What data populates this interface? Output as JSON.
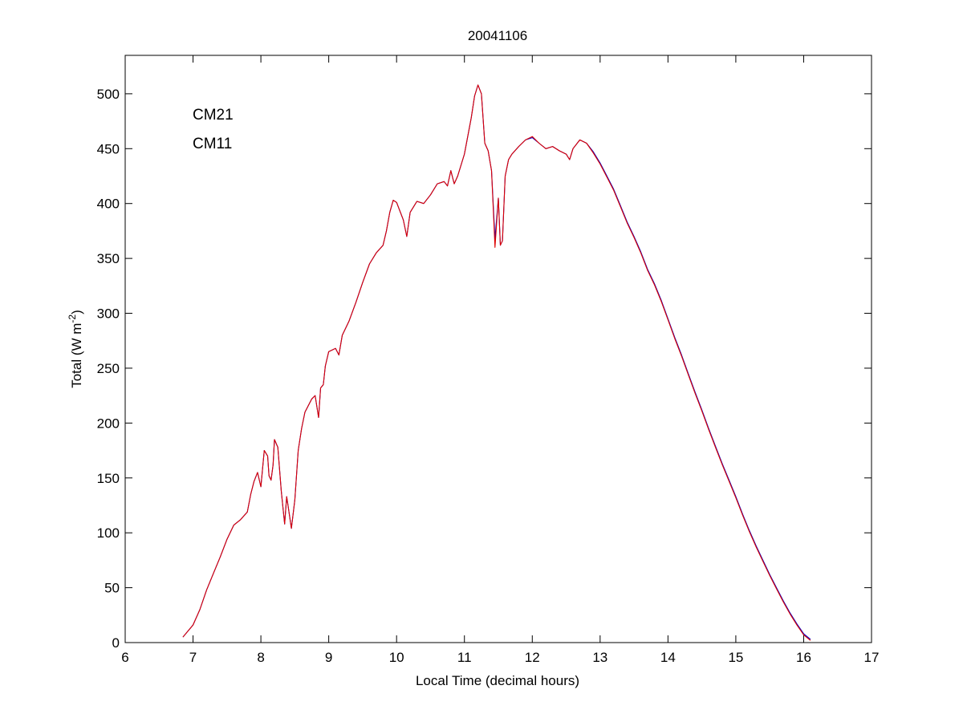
{
  "chart_data": {
    "type": "line",
    "title": "20041106",
    "xlabel": "Local Time (decimal hours)",
    "ylabel": {
      "main": "Total (W m",
      "sup": "-2",
      "close": ")"
    },
    "xlim": [
      6,
      17
    ],
    "ylim": [
      0,
      535
    ],
    "xticks": [
      6,
      7,
      8,
      9,
      10,
      11,
      12,
      13,
      14,
      15,
      16,
      17
    ],
    "yticks": [
      0,
      50,
      100,
      150,
      200,
      250,
      300,
      350,
      400,
      450,
      500
    ],
    "grid": false,
    "legend_position": "top-left",
    "series": [
      {
        "name": "CM21",
        "color": "#0000cc",
        "points": [
          [
            6.85,
            5
          ],
          [
            7.0,
            16
          ],
          [
            7.1,
            30
          ],
          [
            7.2,
            48
          ],
          [
            7.3,
            63
          ],
          [
            7.4,
            78
          ],
          [
            7.5,
            94
          ],
          [
            7.6,
            107
          ],
          [
            7.7,
            112
          ],
          [
            7.8,
            119
          ],
          [
            7.85,
            135
          ],
          [
            7.9,
            147
          ],
          [
            7.95,
            155
          ],
          [
            8.0,
            142
          ],
          [
            8.05,
            175
          ],
          [
            8.1,
            170
          ],
          [
            8.12,
            152
          ],
          [
            8.15,
            148
          ],
          [
            8.18,
            162
          ],
          [
            8.2,
            185
          ],
          [
            8.25,
            178
          ],
          [
            8.3,
            138
          ],
          [
            8.35,
            108
          ],
          [
            8.38,
            133
          ],
          [
            8.4,
            125
          ],
          [
            8.45,
            104
          ],
          [
            8.5,
            130
          ],
          [
            8.55,
            175
          ],
          [
            8.6,
            195
          ],
          [
            8.65,
            210
          ],
          [
            8.75,
            222
          ],
          [
            8.8,
            225
          ],
          [
            8.85,
            205
          ],
          [
            8.88,
            232
          ],
          [
            8.92,
            235
          ],
          [
            8.95,
            252
          ],
          [
            9.0,
            265
          ],
          [
            9.1,
            268
          ],
          [
            9.15,
            262
          ],
          [
            9.2,
            280
          ],
          [
            9.3,
            293
          ],
          [
            9.4,
            310
          ],
          [
            9.5,
            328
          ],
          [
            9.6,
            345
          ],
          [
            9.7,
            355
          ],
          [
            9.8,
            362
          ],
          [
            9.85,
            375
          ],
          [
            9.9,
            392
          ],
          [
            9.95,
            403
          ],
          [
            10.0,
            401
          ],
          [
            10.1,
            385
          ],
          [
            10.15,
            370
          ],
          [
            10.2,
            392
          ],
          [
            10.3,
            402
          ],
          [
            10.4,
            400
          ],
          [
            10.5,
            408
          ],
          [
            10.6,
            418
          ],
          [
            10.7,
            420
          ],
          [
            10.75,
            416
          ],
          [
            10.8,
            430
          ],
          [
            10.85,
            418
          ],
          [
            10.9,
            425
          ],
          [
            11.0,
            445
          ],
          [
            11.1,
            478
          ],
          [
            11.15,
            498
          ],
          [
            11.2,
            508
          ],
          [
            11.25,
            500
          ],
          [
            11.3,
            455
          ],
          [
            11.35,
            448
          ],
          [
            11.4,
            430
          ],
          [
            11.45,
            368
          ],
          [
            11.5,
            405
          ],
          [
            11.53,
            362
          ],
          [
            11.56,
            366
          ],
          [
            11.6,
            425
          ],
          [
            11.65,
            440
          ],
          [
            11.7,
            445
          ],
          [
            11.8,
            452
          ],
          [
            11.9,
            458
          ],
          [
            12.0,
            460
          ],
          [
            12.1,
            455
          ],
          [
            12.2,
            450
          ],
          [
            12.3,
            452
          ],
          [
            12.4,
            448
          ],
          [
            12.5,
            445
          ],
          [
            12.55,
            440
          ],
          [
            12.6,
            450
          ],
          [
            12.7,
            458
          ],
          [
            12.8,
            455
          ],
          [
            12.9,
            447
          ],
          [
            13.0,
            437
          ],
          [
            13.1,
            425
          ],
          [
            13.2,
            413
          ],
          [
            13.3,
            398
          ],
          [
            13.4,
            383
          ],
          [
            13.5,
            370
          ],
          [
            13.6,
            356
          ],
          [
            13.7,
            340
          ],
          [
            13.8,
            327
          ],
          [
            13.9,
            312
          ],
          [
            14.0,
            295
          ],
          [
            14.1,
            278
          ],
          [
            14.2,
            262
          ],
          [
            14.3,
            245
          ],
          [
            14.4,
            228
          ],
          [
            14.5,
            212
          ],
          [
            14.6,
            195
          ],
          [
            14.7,
            179
          ],
          [
            14.8,
            163
          ],
          [
            14.9,
            148
          ],
          [
            15.0,
            133
          ],
          [
            15.1,
            117
          ],
          [
            15.2,
            102
          ],
          [
            15.3,
            88
          ],
          [
            15.4,
            75
          ],
          [
            15.5,
            62
          ],
          [
            15.6,
            50
          ],
          [
            15.7,
            38
          ],
          [
            15.8,
            27
          ],
          [
            15.9,
            17
          ],
          [
            16.0,
            8
          ],
          [
            16.1,
            3
          ]
        ]
      },
      {
        "name": "CM11",
        "color": "#dd0000",
        "points": [
          [
            6.85,
            5
          ],
          [
            7.0,
            16
          ],
          [
            7.1,
            30
          ],
          [
            7.2,
            48
          ],
          [
            7.3,
            63
          ],
          [
            7.4,
            78
          ],
          [
            7.5,
            94
          ],
          [
            7.6,
            107
          ],
          [
            7.7,
            112
          ],
          [
            7.8,
            119
          ],
          [
            7.85,
            135
          ],
          [
            7.9,
            147
          ],
          [
            7.95,
            155
          ],
          [
            8.0,
            142
          ],
          [
            8.05,
            175
          ],
          [
            8.1,
            170
          ],
          [
            8.12,
            152
          ],
          [
            8.15,
            148
          ],
          [
            8.18,
            162
          ],
          [
            8.2,
            185
          ],
          [
            8.25,
            178
          ],
          [
            8.3,
            138
          ],
          [
            8.35,
            108
          ],
          [
            8.38,
            133
          ],
          [
            8.4,
            125
          ],
          [
            8.45,
            104
          ],
          [
            8.5,
            130
          ],
          [
            8.55,
            175
          ],
          [
            8.6,
            195
          ],
          [
            8.65,
            210
          ],
          [
            8.75,
            222
          ],
          [
            8.8,
            225
          ],
          [
            8.85,
            205
          ],
          [
            8.88,
            232
          ],
          [
            8.92,
            235
          ],
          [
            8.95,
            252
          ],
          [
            9.0,
            265
          ],
          [
            9.1,
            268
          ],
          [
            9.15,
            262
          ],
          [
            9.2,
            280
          ],
          [
            9.3,
            293
          ],
          [
            9.4,
            310
          ],
          [
            9.5,
            328
          ],
          [
            9.6,
            345
          ],
          [
            9.7,
            355
          ],
          [
            9.8,
            362
          ],
          [
            9.85,
            375
          ],
          [
            9.9,
            392
          ],
          [
            9.95,
            403
          ],
          [
            10.0,
            401
          ],
          [
            10.1,
            385
          ],
          [
            10.15,
            370
          ],
          [
            10.2,
            392
          ],
          [
            10.3,
            402
          ],
          [
            10.4,
            400
          ],
          [
            10.5,
            408
          ],
          [
            10.6,
            418
          ],
          [
            10.7,
            420
          ],
          [
            10.75,
            416
          ],
          [
            10.8,
            430
          ],
          [
            10.85,
            418
          ],
          [
            10.9,
            425
          ],
          [
            11.0,
            445
          ],
          [
            11.1,
            478
          ],
          [
            11.15,
            498
          ],
          [
            11.2,
            508
          ],
          [
            11.25,
            500
          ],
          [
            11.3,
            455
          ],
          [
            11.35,
            448
          ],
          [
            11.4,
            430
          ],
          [
            11.45,
            360
          ],
          [
            11.5,
            405
          ],
          [
            11.53,
            362
          ],
          [
            11.56,
            366
          ],
          [
            11.6,
            425
          ],
          [
            11.65,
            440
          ],
          [
            11.7,
            445
          ],
          [
            11.8,
            452
          ],
          [
            11.9,
            458
          ],
          [
            12.0,
            461
          ],
          [
            12.1,
            455
          ],
          [
            12.2,
            450
          ],
          [
            12.3,
            452
          ],
          [
            12.4,
            448
          ],
          [
            12.5,
            445
          ],
          [
            12.55,
            440
          ],
          [
            12.6,
            450
          ],
          [
            12.7,
            458
          ],
          [
            12.8,
            455
          ],
          [
            12.9,
            446
          ],
          [
            13.0,
            436
          ],
          [
            13.1,
            424
          ],
          [
            13.2,
            412
          ],
          [
            13.3,
            397
          ],
          [
            13.4,
            382
          ],
          [
            13.5,
            369
          ],
          [
            13.6,
            355
          ],
          [
            13.7,
            339
          ],
          [
            13.8,
            326
          ],
          [
            13.9,
            311
          ],
          [
            14.0,
            294
          ],
          [
            14.1,
            277
          ],
          [
            14.2,
            261
          ],
          [
            14.3,
            244
          ],
          [
            14.4,
            227
          ],
          [
            14.5,
            211
          ],
          [
            14.6,
            194
          ],
          [
            14.7,
            178
          ],
          [
            14.8,
            162
          ],
          [
            14.9,
            147
          ],
          [
            15.0,
            132
          ],
          [
            15.1,
            116
          ],
          [
            15.2,
            101
          ],
          [
            15.3,
            87
          ],
          [
            15.4,
            74
          ],
          [
            15.5,
            61
          ],
          [
            15.6,
            49
          ],
          [
            15.7,
            37
          ],
          [
            15.8,
            26
          ],
          [
            15.9,
            16
          ],
          [
            16.0,
            7
          ],
          [
            16.1,
            2
          ]
        ]
      }
    ]
  }
}
